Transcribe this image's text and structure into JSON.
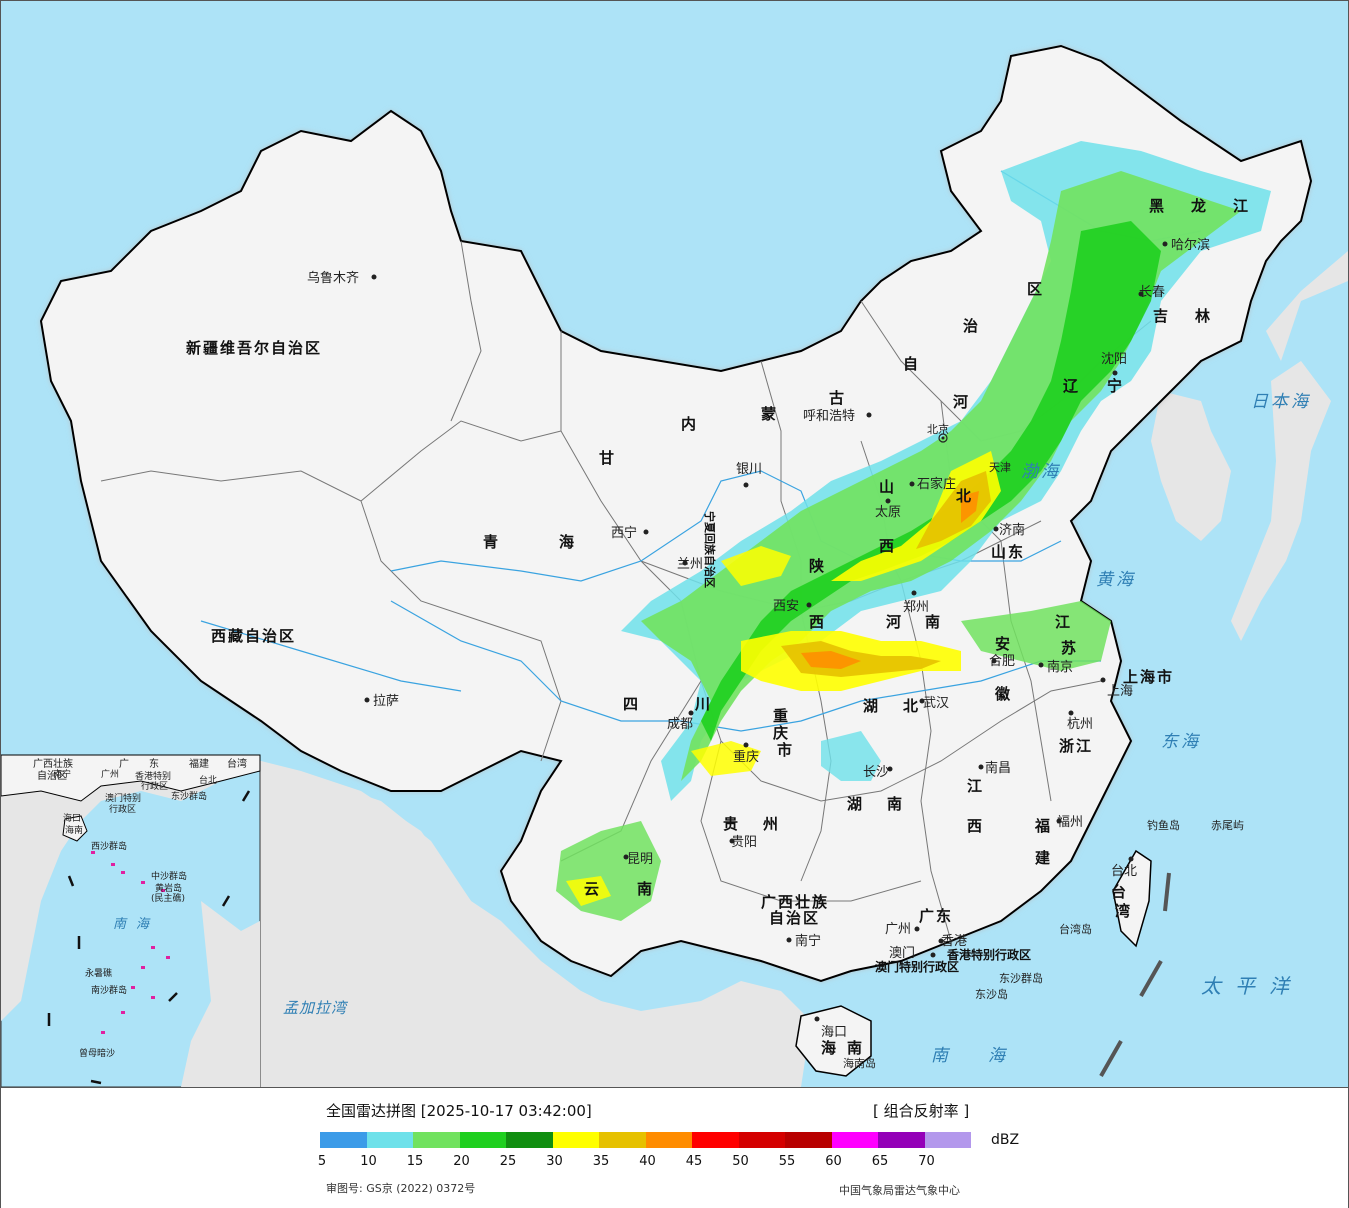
{
  "map": {
    "regions": {
      "xinjiang": "新疆维吾尔自治区",
      "xizang": "西藏自治区",
      "qinghai_a": "青",
      "qinghai_b": "海",
      "gansu": "甘",
      "neimeng_nei": "内",
      "neimeng_meng": "蒙",
      "neimeng_gu": "古",
      "neimeng_zi": "自",
      "neimeng_zhi": "治",
      "neimeng_qu": "区",
      "heilongjiang_hei": "黑",
      "heilongjiang_long": "龙",
      "heilongjiang_jiang": "江",
      "jilin_ji": "吉",
      "jilin_lin": "林",
      "liaoning_liao": "辽",
      "liaoning_ning": "宁",
      "hebei_he": "河",
      "hebei_bei": "北",
      "shanxi_shan": "山",
      "shanxi_xi": "西",
      "shaanxi_shan": "陕",
      "shaanxi_xi": "西",
      "ningxia": "宁夏回族自治区",
      "shandong": "山东",
      "henan_he": "河",
      "henan_nan": "南",
      "jiangsu_jiang": "江",
      "jiangsu_su": "苏",
      "anhui_an": "安",
      "anhui_hui": "徽",
      "hubei_hu": "湖",
      "hubei_bei": "北",
      "sichuan_si": "四",
      "sichuan_chuan": "川",
      "chongqing_zhong": "重",
      "chongqing_qing": "庆",
      "chongqing_shi": "市",
      "zhejiang": "浙江",
      "shanghai": "上海市",
      "jiangxi_jiang": "江",
      "jiangxi_xi": "西",
      "hunan_hu": "湖",
      "hunan_nan": "南",
      "guizhou_gui": "贵",
      "guizhou_zhou": "州",
      "yunnan_yun": "云",
      "yunnan_nan": "南",
      "fujian_fu": "福",
      "fujian_jian": "建",
      "guangxi_1": "广西壮族",
      "guangxi_2": "自治区",
      "guangdong": "广东",
      "taiwan_tai": "台",
      "taiwan_wan": "湾",
      "hainan_hai": "海",
      "hainan_nan": "南",
      "hk": "香港特别行政区",
      "macau": "澳门特别行政区",
      "tianjin": "天津",
      "beijing": "北京"
    },
    "cities": {
      "urumqi": "乌鲁木齐",
      "lhasa": "拉萨",
      "xining": "西宁",
      "lanzhou": "兰州",
      "yinchuan": "银川",
      "hohhot": "呼和浩特",
      "harbin": "哈尔滨",
      "changchun": "长春",
      "shenyang": "沈阳",
      "shijiazhuang": "石家庄",
      "taiyuan": "太原",
      "jinan": "济南",
      "zhengzhou": "郑州",
      "xian": "西安",
      "hefei": "合肥",
      "nanjing": "南京",
      "shanghai": "上海",
      "hangzhou": "杭州",
      "wuhan": "武汉",
      "chengdu": "成都",
      "chongqing": "重庆",
      "changsha": "长沙",
      "nanchang": "南昌",
      "guiyang": "贵阳",
      "kunming": "昆明",
      "fuzhou": "福州",
      "taipei": "台北",
      "nanning": "南宁",
      "guangzhou": "广州",
      "hongkong": "香港",
      "macau": "澳门",
      "haikou": "海口"
    },
    "islands": {
      "diaoyu": "钓鱼岛",
      "chiwei": "赤尾屿",
      "taiwan_dao": "台湾岛",
      "dongsha_qundao": "东沙群岛",
      "dongsha_dao": "东沙岛",
      "hainan_dao": "海南岛"
    },
    "seas": {
      "japan_sea": "日本海",
      "bohai": "渤海",
      "yellow_sea": "黄海",
      "east_sea": "东海",
      "pacific": "太平洋",
      "south_sea": "南海",
      "bengal": "孟加拉湾"
    },
    "inset": {
      "guangxi": "广西壮族",
      "guangxi2": "自治区",
      "guangdong_guang": "广",
      "guangdong_dong": "东",
      "fujian": "福建",
      "taiwan": "台湾",
      "nanning": "南宁",
      "guangzhou": "广州",
      "hk": "香港特别",
      "hk2": "行政区",
      "macau": "澳门特别",
      "macau2": "行政区",
      "taipei": "台北",
      "dongsha": "东沙群岛",
      "haikou": "海口",
      "hainan": "海南",
      "xisha": "西沙群岛",
      "zhongsha": "中沙群岛",
      "huangyan": "黄岩岛",
      "huangyan2": "(民主礁)",
      "sea": "南海",
      "yongshu": "永暑礁",
      "nansha": "南沙群岛",
      "zengmu": "曾母暗沙"
    }
  },
  "legend": {
    "title": "全国雷达拼图 [2025-10-17 03:42:00]",
    "product": "[ 组合反射率 ]",
    "unit": "dBZ",
    "approval": "审图号: GS京 (2022) 0372号",
    "source": "中国气象局雷达气象中心",
    "ticks": [
      "5",
      "10",
      "15",
      "20",
      "25",
      "30",
      "35",
      "40",
      "45",
      "50",
      "55",
      "60",
      "65",
      "70"
    ],
    "colors": [
      "#3c9be8",
      "#6ee1ea",
      "#71e25f",
      "#1fcf1f",
      "#108e10",
      "#ffff00",
      "#e6c100",
      "#ff8c00",
      "#ff0000",
      "#d40000",
      "#b80000",
      "#ff00ff",
      "#9400b8",
      "#b398ec"
    ]
  }
}
